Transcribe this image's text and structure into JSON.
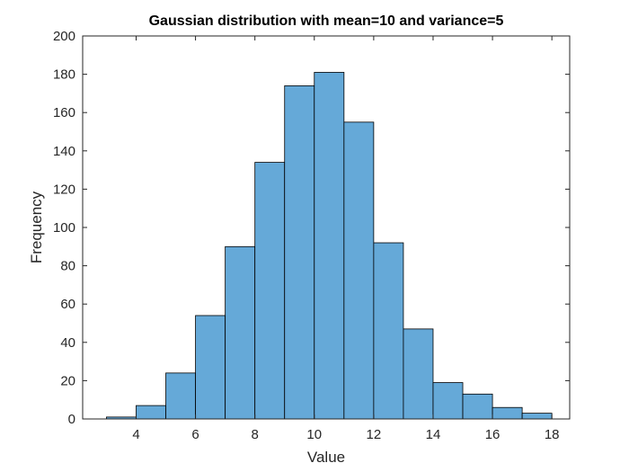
{
  "chart_data": {
    "type": "bar",
    "title": "Gaussian distribution with mean=10 and variance=5",
    "xlabel": "Value",
    "ylabel": "Frequency",
    "xlim": [
      2.2,
      18.6
    ],
    "ylim": [
      0,
      200
    ],
    "x_ticks": [
      4,
      6,
      8,
      10,
      12,
      14,
      16,
      18
    ],
    "y_ticks": [
      0,
      20,
      40,
      60,
      80,
      100,
      120,
      140,
      160,
      180,
      200
    ],
    "bin_edges": [
      3,
      4,
      5,
      6,
      7,
      8,
      9,
      10,
      11,
      12,
      13,
      14,
      15,
      16,
      17,
      18
    ],
    "values": [
      1,
      7,
      24,
      54,
      90,
      134,
      174,
      181,
      155,
      92,
      47,
      19,
      13,
      6,
      3
    ],
    "grid": false,
    "legend": "none",
    "colors": {
      "bar_fill": "#65a9d8",
      "bar_edge": "#000000",
      "axis": "#262626"
    }
  }
}
